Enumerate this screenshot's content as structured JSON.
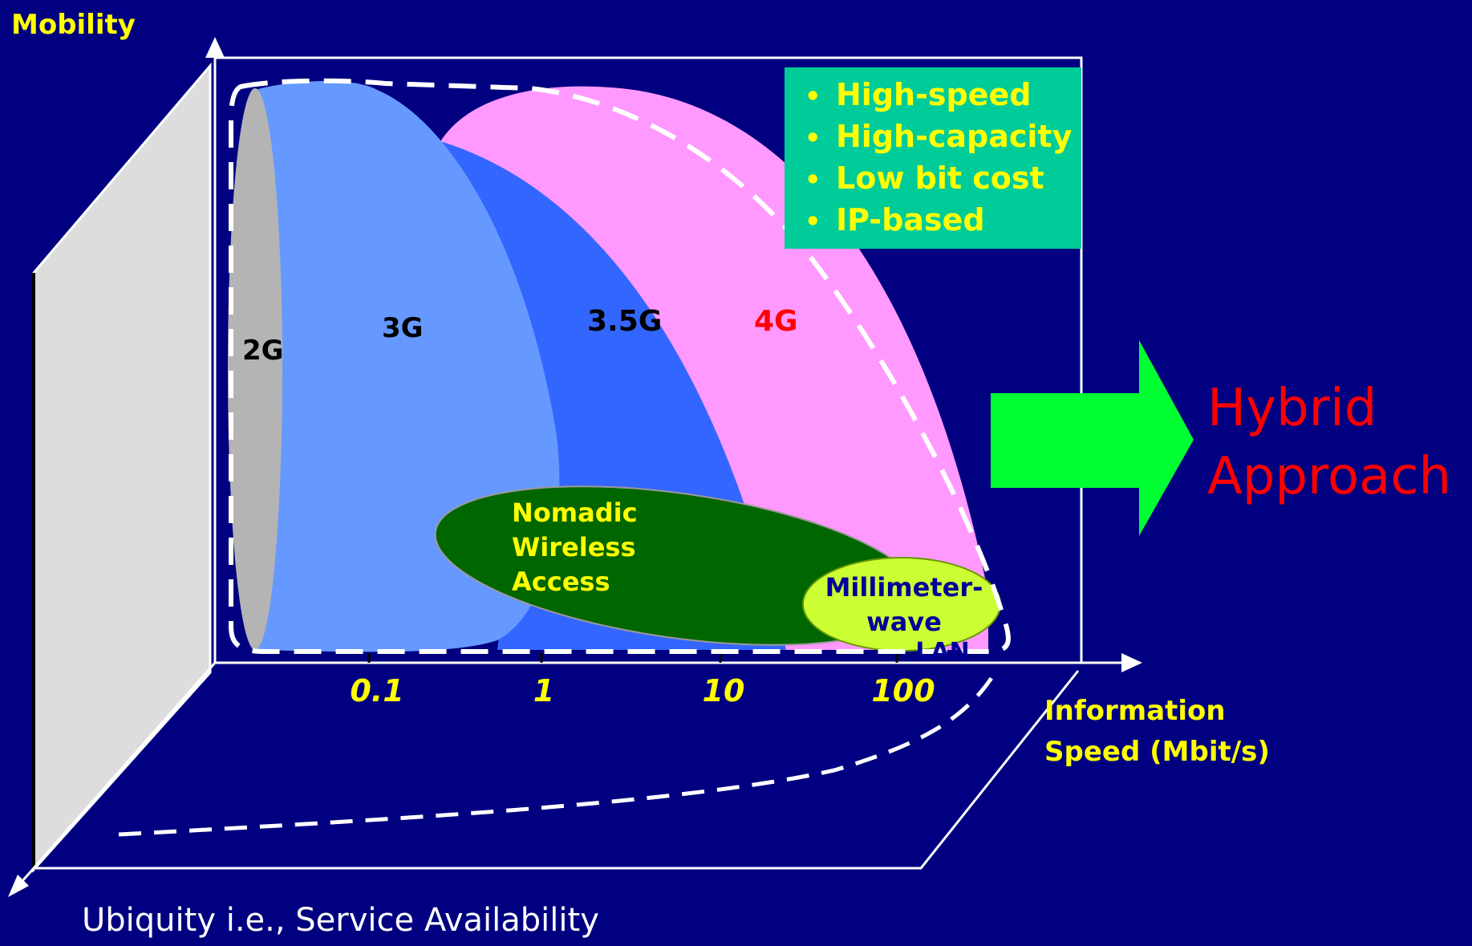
{
  "axes": {
    "y_label": "Mobility",
    "x_label_line1": "Information",
    "x_label_line2": "Speed (Mbit/s)",
    "z_label": "Ubiquity i.e.,  Service Availability",
    "x_ticks": [
      "0.1",
      "1",
      "10",
      "100"
    ]
  },
  "regions": {
    "g2": "2G",
    "g3": "3G",
    "g35": "3.5G",
    "g4": "4G",
    "nomadic_line1": "Nomadic",
    "nomadic_line2": "Wireless",
    "nomadic_line3": "Access",
    "mmwave_line1": "Millimeter-",
    "mmwave_line2": "wave",
    "mmwave_line3": "LAN"
  },
  "features": {
    "items": [
      "High-speed",
      "High-capacity",
      "Low bit cost",
      "IP-based"
    ]
  },
  "conclusion": {
    "line1": "Hybrid",
    "line2": "Approach"
  },
  "colors": {
    "background": "#000080",
    "g2": "#B4B4B4",
    "g3": "#6699FF",
    "g35": "#3366FF",
    "g4": "#FF99FF",
    "nomadic": "#006600",
    "mmwave": "#CCFF33",
    "features_box": "#00CC99",
    "arrow": "#00FF33",
    "label_yellow": "#FFFF00",
    "label_red": "#FF0000"
  }
}
